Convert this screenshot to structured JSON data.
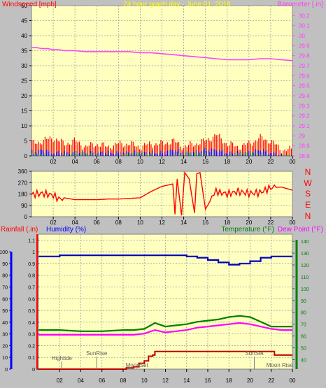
{
  "header": {
    "left_label": "Windspeed [mph]",
    "title": "24 hour graph day - June 01, 2018",
    "right_label": "Barometer [.in]"
  },
  "direction_letters": [
    "N",
    "W",
    "S",
    "E",
    "N"
  ],
  "lower_header": {
    "rain_label": "Rainfall (.in)",
    "humidity_label": "Humidity (%)",
    "temp_label": "Temperature (°F)",
    "dew_label": "Dew Point (°F)"
  },
  "annotations": {
    "hightide": "Hightide",
    "sunrise": "SunRise",
    "moonset": "MoonSet",
    "sunset": "SunSet",
    "moonrise": "Moon Rise"
  },
  "colors": {
    "plot_bg": "#ffffc0",
    "page_bg": "#c0c0c0",
    "barometer": "#ff40ff",
    "wind_gust": "#ff0000",
    "wind_avg": "#0000ff",
    "wind_low": "#008000",
    "direction": "#ff0000",
    "humidity": "#0000c0",
    "temperature": "#008000",
    "dewpoint": "#ff00ff",
    "rain": "#c00000"
  },
  "chart_data": [
    {
      "type": "line",
      "title": "24 hour graph day - June 01, 2018",
      "x_ticks": [
        "02",
        "04",
        "06",
        "08",
        "10",
        "12",
        "14",
        "16",
        "18",
        "20",
        "22",
        "00"
      ],
      "y_left_label": "Windspeed [mph]",
      "y_left_ticks": [
        0,
        5,
        10,
        15,
        20,
        25,
        30,
        35,
        40,
        45,
        50
      ],
      "y_left_lim": [
        0,
        50
      ],
      "y_right_label": "Barometer [.in]",
      "y_right_ticks": [
        "28.8",
        "28.9",
        "29",
        "29.1",
        "29.2",
        "29.3",
        "29.4",
        "29.5",
        "29.6",
        "29.7",
        "29.8",
        "29.9",
        "30",
        "30.1",
        "30.2"
      ],
      "y_right_lim": [
        28.8,
        30.3
      ],
      "series": [
        {
          "key": "barometer",
          "axis": "right",
          "x": [
            0,
            0.5,
            1,
            1.5,
            2,
            2.5,
            3,
            4,
            5,
            6,
            7,
            8,
            9,
            10,
            11,
            12,
            13,
            14,
            15,
            16,
            17,
            18,
            19,
            20,
            21,
            22,
            23,
            24
          ],
          "values": [
            29.88,
            29.88,
            29.87,
            29.87,
            29.86,
            29.86,
            29.85,
            29.85,
            29.84,
            29.84,
            29.84,
            29.84,
            29.84,
            29.83,
            29.83,
            29.82,
            29.81,
            29.8,
            29.79,
            29.78,
            29.77,
            29.76,
            29.76,
            29.76,
            29.77,
            29.77,
            29.76,
            29.75
          ]
        },
        {
          "key": "wind_gust",
          "axis": "left",
          "x": [
            0,
            1,
            2,
            3,
            4,
            5,
            6,
            7,
            8,
            9,
            10,
            11,
            12,
            13,
            14,
            15,
            16,
            17,
            18,
            19,
            20,
            21,
            22,
            23,
            24
          ],
          "values": [
            4,
            5,
            6,
            4,
            5,
            3,
            4,
            3,
            4,
            4,
            3,
            4,
            4,
            5,
            3,
            4,
            5,
            7,
            4,
            3,
            4,
            6,
            5,
            2,
            2
          ]
        },
        {
          "key": "wind_avg",
          "axis": "left",
          "x": [
            0,
            1,
            2,
            3,
            4,
            5,
            6,
            7,
            8,
            9,
            10,
            11,
            12,
            13,
            14,
            15,
            16,
            17,
            18,
            19,
            20,
            21,
            22,
            23,
            24
          ],
          "values": [
            1,
            2,
            1,
            1,
            1,
            1,
            1,
            1,
            1,
            1,
            1,
            1,
            1,
            2,
            1,
            1,
            2,
            2,
            1,
            1,
            1,
            2,
            1,
            0,
            0
          ]
        }
      ]
    },
    {
      "type": "line",
      "title": "",
      "y_ticks": [
        0,
        90,
        180,
        270,
        360
      ],
      "y_lim": [
        0,
        360
      ],
      "series": [
        {
          "key": "direction",
          "x": [
            0,
            1,
            2,
            2.5,
            3,
            4,
            5,
            6,
            7,
            8,
            9,
            10,
            11,
            11.5,
            12,
            13,
            13.2,
            13.4,
            13.8,
            14.1,
            14.5,
            15,
            15.2,
            15.5,
            16,
            16.4,
            16.8,
            17.5,
            18,
            19,
            20,
            21,
            22,
            23,
            24
          ],
          "values": [
            175,
            185,
            170,
            140,
            150,
            135,
            135,
            135,
            140,
            140,
            145,
            150,
            200,
            220,
            240,
            260,
            20,
            300,
            10,
            350,
            300,
            30,
            340,
            350,
            60,
            120,
            200,
            190,
            180,
            200,
            185,
            190,
            230,
            235,
            210
          ]
        }
      ]
    },
    {
      "type": "line",
      "title": "",
      "y_rain_label": "Rainfall (.in)",
      "y_rain_ticks": [
        0,
        0.1,
        0.2,
        0.3,
        0.4,
        0.5,
        0.6,
        0.7,
        0.8,
        0.9,
        1,
        1.1
      ],
      "y_rain_lim": [
        0,
        1.15
      ],
      "y_humidity_label": "Humidity (%)",
      "y_humidity_ticks": [
        0,
        10,
        20,
        30,
        40,
        50,
        60,
        70,
        80,
        90,
        100
      ],
      "y_temp_label": "Temperature (°F)",
      "y_temp_ticks": [
        40,
        50,
        60,
        70,
        80,
        90,
        100,
        110,
        120,
        130,
        140
      ],
      "y_temp_lim": [
        32,
        146
      ],
      "series": [
        {
          "key": "humidity",
          "axis": "humidity",
          "x": [
            0,
            2,
            4,
            6,
            8,
            10,
            12,
            14,
            15,
            16,
            17,
            18,
            19,
            20,
            21,
            22,
            24
          ],
          "values": [
            96,
            97,
            97,
            97,
            97,
            97,
            97,
            96,
            95,
            93,
            91,
            89,
            90,
            92,
            95,
            96,
            96
          ]
        },
        {
          "key": "temperature",
          "axis": "temp",
          "x": [
            0,
            2,
            4,
            6,
            8,
            9,
            10,
            11,
            12,
            13,
            14,
            15,
            16,
            17,
            18,
            19,
            20,
            21,
            22,
            23,
            24
          ],
          "values": [
            65,
            65,
            64,
            64,
            65,
            65,
            66,
            71,
            68,
            69,
            70,
            72,
            73,
            74,
            76,
            77,
            76,
            72,
            68,
            68,
            68
          ]
        },
        {
          "key": "dewpoint",
          "axis": "temp",
          "x": [
            0,
            2,
            4,
            6,
            8,
            9,
            10,
            11,
            12,
            13,
            14,
            15,
            16,
            17,
            18,
            19,
            20,
            21,
            22,
            23,
            24
          ],
          "values": [
            61,
            61,
            61,
            61,
            61,
            61,
            62,
            65,
            63,
            64,
            65,
            67,
            68,
            69,
            70,
            71,
            70,
            68,
            66,
            65,
            65
          ]
        },
        {
          "key": "rain",
          "axis": "rain",
          "step": true,
          "x": [
            0,
            8,
            8.3,
            9,
            9.5,
            10,
            10.4,
            10.8,
            11,
            22,
            22.3,
            24
          ],
          "values": [
            0,
            0,
            0.01,
            0.02,
            0.05,
            0.07,
            0.11,
            0.12,
            0.15,
            0.15,
            0.12,
            0.12
          ]
        }
      ]
    }
  ]
}
